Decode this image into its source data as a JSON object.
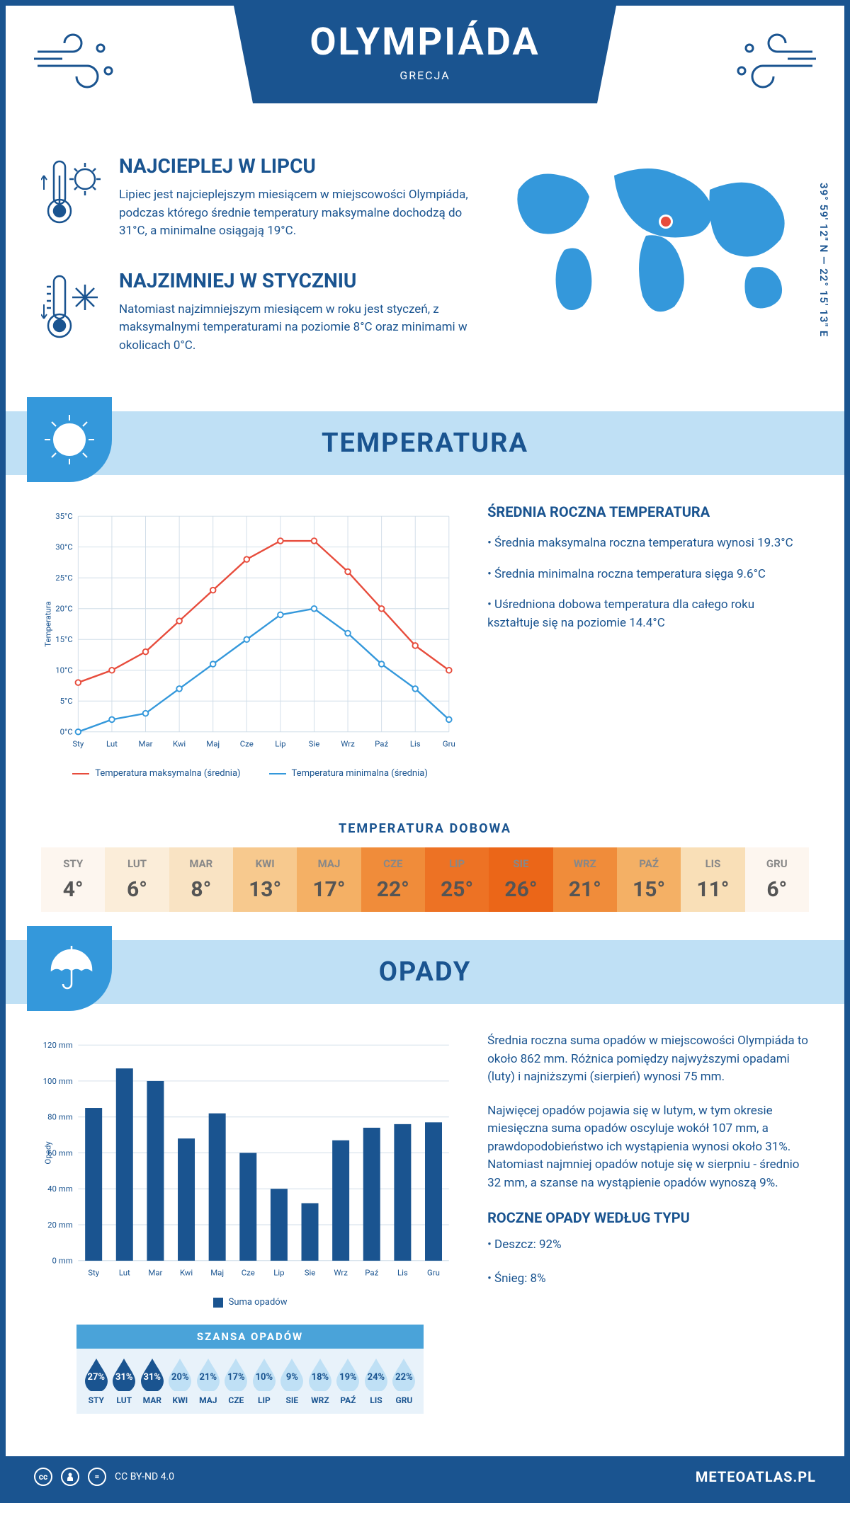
{
  "header": {
    "title": "OLYMPIÁDA",
    "subtitle": "GRECJA"
  },
  "coords": "39° 59' 12\" N — 22° 15' 13\" E",
  "intro": {
    "warm": {
      "title": "NAJCIEPLEJ W LIPCU",
      "text": "Lipiec jest najcieplejszym miesiącem w miejscowości Olympiáda, podczas którego średnie temperatury maksymalne dochodzą do 31°C, a minimalne osiągają 19°C."
    },
    "cold": {
      "title": "NAJZIMNIEJ W STYCZNIU",
      "text": "Natomiast najzimniejszym miesiącem w roku jest styczeń, z maksymalnymi temperaturami na poziomie 8°C oraz minimami w okolicach 0°C."
    }
  },
  "months_short": [
    "Sty",
    "Lut",
    "Mar",
    "Kwi",
    "Maj",
    "Cze",
    "Lip",
    "Sie",
    "Wrz",
    "Paź",
    "Lis",
    "Gru"
  ],
  "months_upper": [
    "STY",
    "LUT",
    "MAR",
    "KWI",
    "MAJ",
    "CZE",
    "LIP",
    "SIE",
    "WRZ",
    "PAŹ",
    "LIS",
    "GRU"
  ],
  "temperature": {
    "section_title": "TEMPERATURA",
    "chart": {
      "type": "line",
      "ylabel": "Temperatura",
      "ylim": [
        0,
        35
      ],
      "ytick_step": 5,
      "ytick_suffix": "°C",
      "grid_color": "#d0dde8",
      "series": {
        "max": {
          "label": "Temperatura maksymalna (średnia)",
          "color": "#e74c3c",
          "values": [
            8,
            10,
            13,
            18,
            23,
            28,
            31,
            31,
            26,
            20,
            14,
            10
          ]
        },
        "min": {
          "label": "Temperatura minimalna (średnia)",
          "color": "#3498db",
          "values": [
            0,
            2,
            3,
            7,
            11,
            15,
            19,
            20,
            16,
            11,
            7,
            2
          ]
        }
      }
    },
    "info": {
      "title": "ŚREDNIA ROCZNA TEMPERATURA",
      "bullets": [
        "Średnia maksymalna roczna temperatura wynosi 19.3°C",
        "Średnia minimalna roczna temperatura sięga 9.6°C",
        "Uśredniona dobowa temperatura dla całego roku kształtuje się na poziomie 14.4°C"
      ]
    },
    "daily": {
      "title": "TEMPERATURA DOBOWA",
      "values": [
        4,
        6,
        8,
        13,
        17,
        22,
        25,
        26,
        21,
        15,
        11,
        6
      ],
      "colors": [
        "#fdf6ef",
        "#fbedd9",
        "#f9e3c3",
        "#f7c98e",
        "#f4b065",
        "#f08c3a",
        "#ed7224",
        "#eb6618",
        "#f08c3a",
        "#f4b065",
        "#f9dfb7",
        "#fdf6ef"
      ]
    }
  },
  "precip": {
    "section_title": "OPADY",
    "chart": {
      "type": "bar",
      "ylabel": "Opady",
      "ylim": [
        0,
        120
      ],
      "ytick_step": 20,
      "ytick_suffix": " mm",
      "bar_color": "#1a5490",
      "grid_color": "#d0dde8",
      "legend": "Suma opadów",
      "values": [
        85,
        107,
        100,
        68,
        82,
        60,
        40,
        32,
        67,
        74,
        76,
        77
      ]
    },
    "info_p1": "Średnia roczna suma opadów w miejscowości Olympiáda to około 862 mm. Różnica pomiędzy najwyższymi opadami (luty) i najniższymi (sierpień) wynosi 75 mm.",
    "info_p2": "Najwięcej opadów pojawia się w lutym, w tym okresie miesięczna suma opadów oscyluje wokół 107 mm, a prawdopodobieństwo ich wystąpienia wynosi około 31%. Natomiast najmniej opadów notuje się w sierpniu - średnio 32 mm, a szanse na wystąpienie opadów wynoszą 9%.",
    "type_title": "ROCZNE OPADY WEDŁUG TYPU",
    "type_bullets": [
      "Deszcz: 92%",
      "Śnieg: 8%"
    ],
    "chance": {
      "title": "SZANSA OPADÓW",
      "values": [
        27,
        31,
        31,
        20,
        21,
        17,
        10,
        9,
        18,
        19,
        24,
        22
      ],
      "dark_threshold": 25,
      "color_dark": "#1a5490",
      "color_light": "#bfe0f5"
    }
  },
  "footer": {
    "license": "CC BY-ND 4.0",
    "site": "METEOATLAS.PL"
  }
}
